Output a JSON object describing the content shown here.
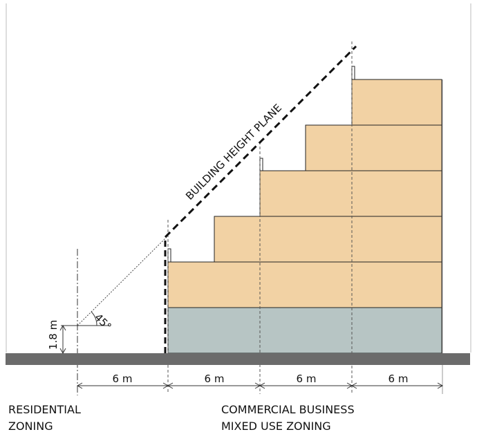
{
  "diagram": {
    "title_plane": "BUILDING HEIGHT PLANE",
    "angle_label": "45°",
    "height_label": "1.8 m",
    "setbacks": [
      {
        "label": "6 m"
      },
      {
        "label": "6 m"
      },
      {
        "label": "6 m"
      },
      {
        "label": "6 m"
      }
    ],
    "zones": {
      "residential": {
        "line1": "RESIDENTIAL",
        "line2": "ZONING"
      },
      "commercial": {
        "line1": "COMMERCIAL BUSINESS",
        "line2": "MIXED USE ZONING"
      }
    },
    "colors": {
      "upper_floors": "#f2d2a4",
      "ground_floor": "#b7c5c4",
      "ground": "#6b6b6b",
      "outline": "#222222"
    },
    "floors": 6
  }
}
